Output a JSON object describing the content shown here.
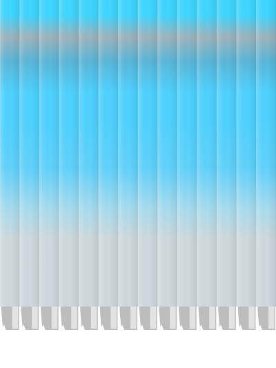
{
  "blind": {
    "slat_count": 14,
    "colors": {
      "top_cyan": "#3fd6ff",
      "grey_band": "#9fb3bd",
      "steel_band": "#5ab7d9",
      "bright_cyan": "#4fd2ff",
      "mid_cyan": "#62d2fb",
      "pale_blue": "#a8dcef",
      "light_grey": "#cfd9dd",
      "hem_grey": "#bdbdbd",
      "background": "#ffffff"
    }
  }
}
